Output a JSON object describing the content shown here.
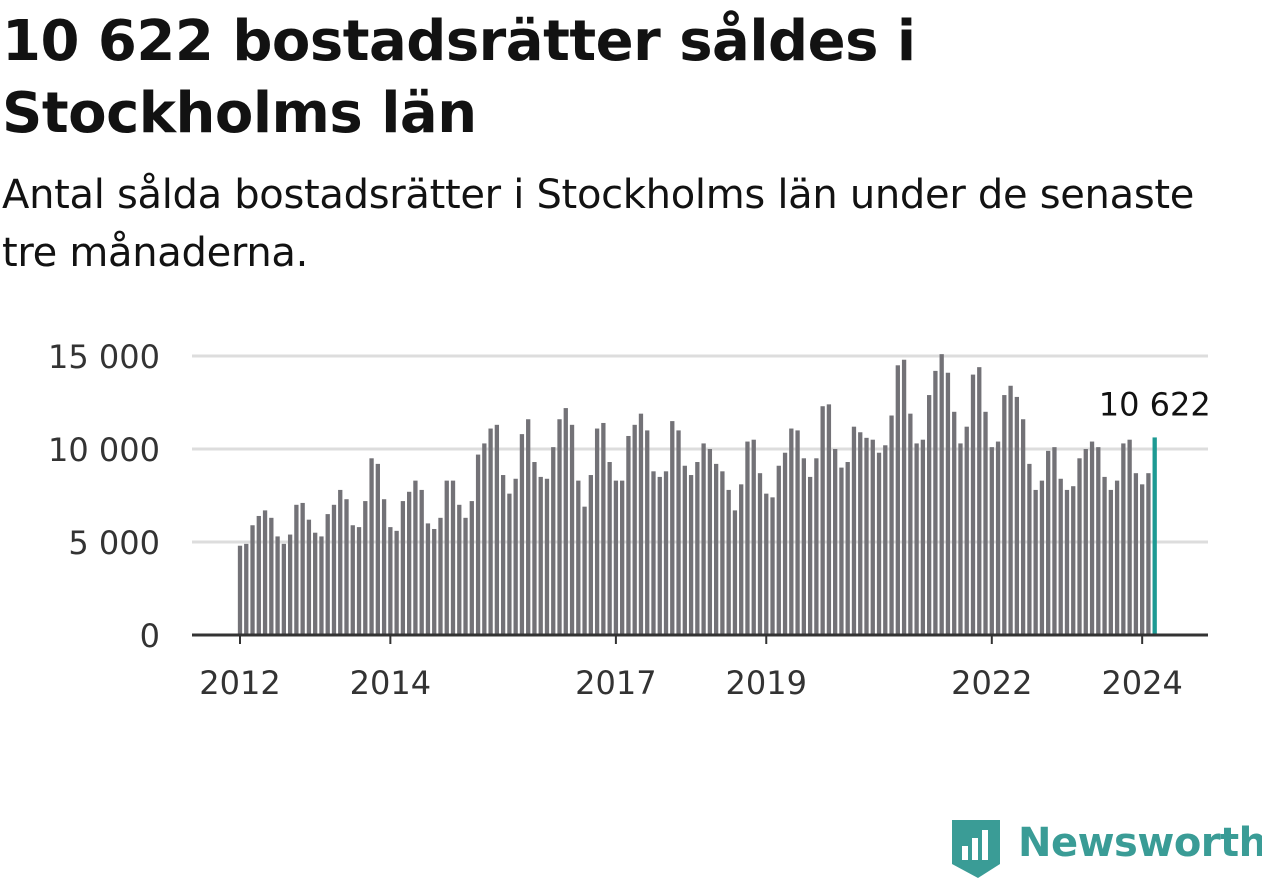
{
  "title": "10 622 bostadsrätter såldes i Stockholms län",
  "subtitle": "Antal sålda bostadsrätter i Stockholms län under de senaste tre månaderna.",
  "brand": "Newsworthy",
  "colors": {
    "bar": "#737277",
    "highlight": "#1d9a93",
    "grid": "#dddddd",
    "axis": "#333333",
    "brand": "#3a9c96"
  },
  "chart_data": {
    "type": "bar",
    "xlabel": "",
    "ylabel": "",
    "ylim": [
      0,
      15000
    ],
    "yticks": [
      0,
      5000,
      10000,
      15000
    ],
    "ytick_labels": [
      "0",
      "5 000",
      "10 000",
      "15 000"
    ],
    "xticks": [
      "2012",
      "2014",
      "2017",
      "2019",
      "2022",
      "2024"
    ],
    "grid": true,
    "highlight_label": "10 622",
    "values": [
      4800,
      4900,
      5900,
      6400,
      6700,
      6300,
      5300,
      4900,
      5400,
      7000,
      7100,
      6200,
      5500,
      5300,
      6500,
      7000,
      7800,
      7300,
      5900,
      5800,
      7200,
      9500,
      9200,
      7300,
      5800,
      5600,
      7200,
      7700,
      8300,
      7800,
      6000,
      5700,
      6300,
      8300,
      8300,
      7000,
      6300,
      7200,
      9700,
      10300,
      11100,
      11300,
      8600,
      7600,
      8400,
      10800,
      11600,
      9300,
      8500,
      8400,
      10100,
      11600,
      12200,
      11300,
      8300,
      6900,
      8600,
      11100,
      11400,
      9300,
      8300,
      8300,
      10700,
      11300,
      11900,
      11000,
      8800,
      8500,
      8800,
      11500,
      11000,
      9100,
      8600,
      9300,
      10300,
      10000,
      9200,
      8800,
      7800,
      6700,
      8100,
      10400,
      10500,
      8700,
      7600,
      7400,
      9100,
      9800,
      11100,
      11000,
      9500,
      8500,
      9500,
      12300,
      12400,
      10000,
      9000,
      9300,
      11200,
      10900,
      10600,
      10500,
      9800,
      10200,
      11800,
      14500,
      14800,
      11900,
      10300,
      10500,
      12900,
      14200,
      15100,
      14100,
      12000,
      10300,
      11200,
      14000,
      14400,
      12000,
      10100,
      10400,
      12900,
      13400,
      12800,
      11600,
      9200,
      7800,
      8300,
      9900,
      10100,
      8400,
      7800,
      8000,
      9500,
      10000,
      10400,
      10100,
      8500,
      7800,
      8300,
      10300,
      10500,
      8700,
      8100,
      8700,
      10622
    ]
  }
}
